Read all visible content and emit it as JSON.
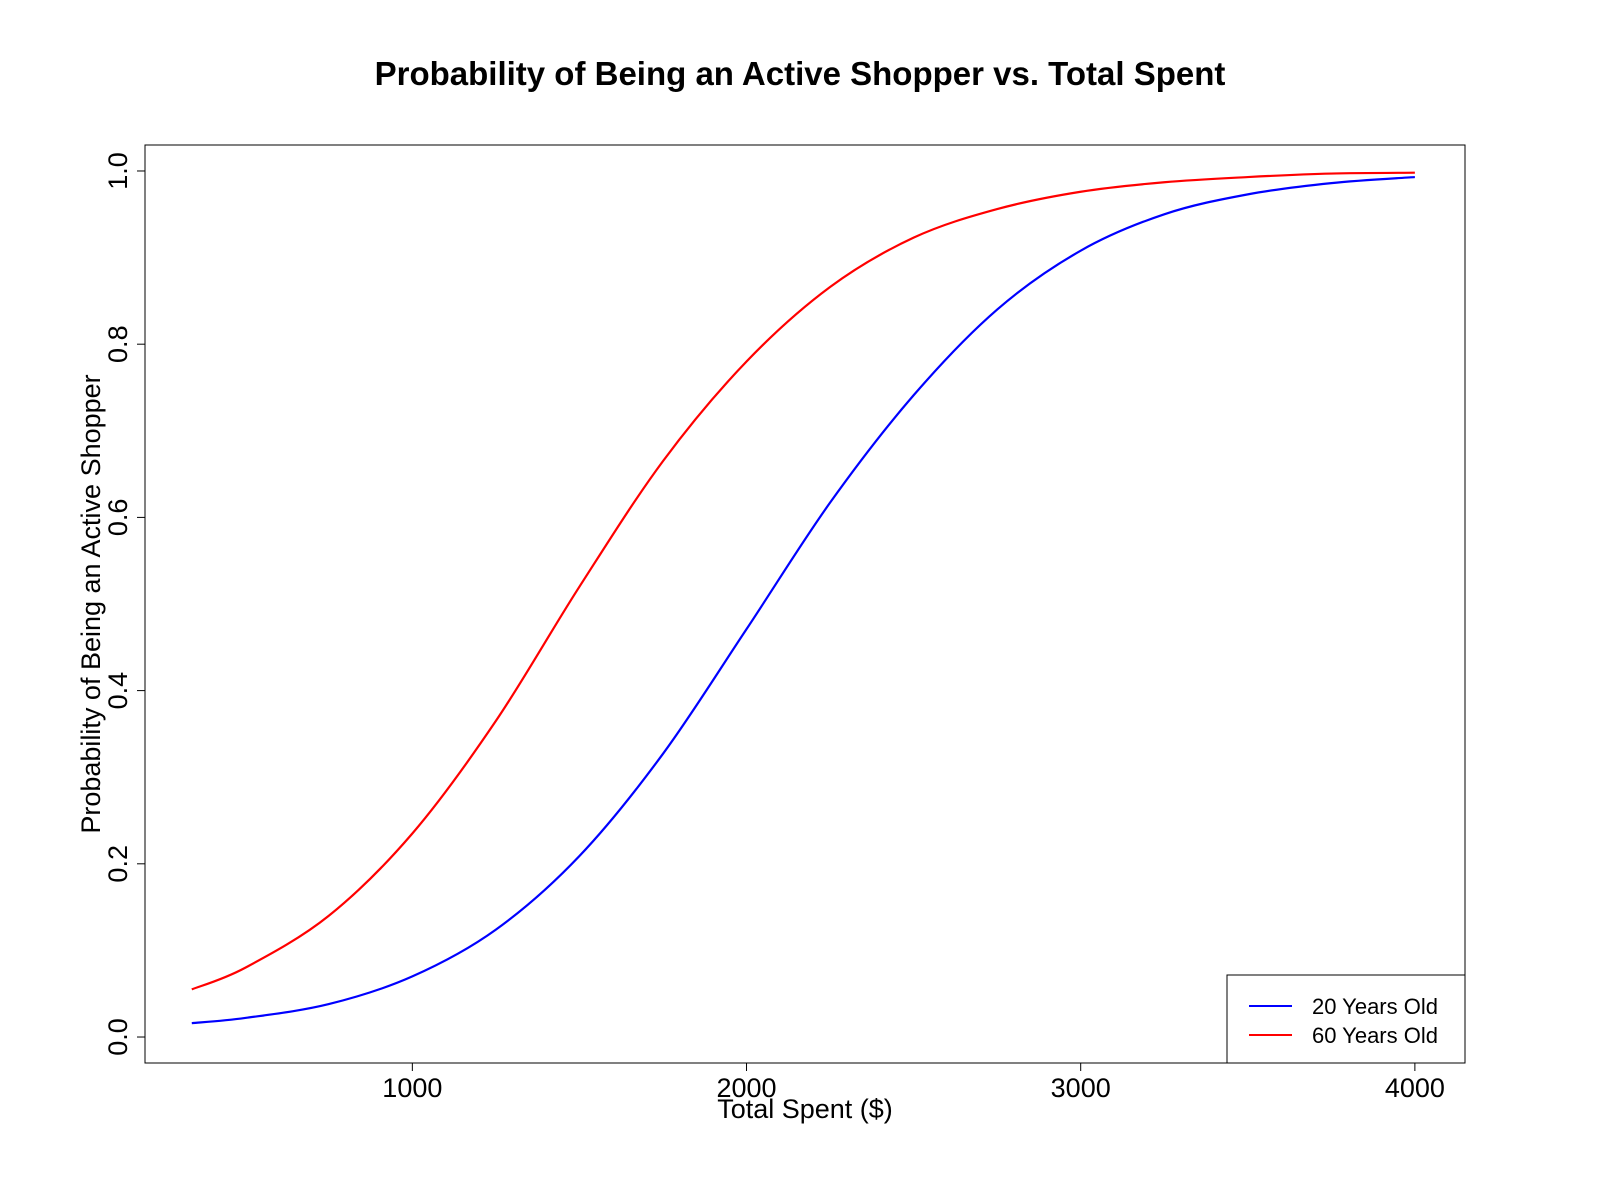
{
  "chart_data": {
    "type": "line",
    "title": "Probability of Being an Active Shopper vs. Total Spent",
    "xlabel": "Total Spent ($)",
    "ylabel": "Probability of Being an Active Shopper",
    "xlim": [
      200,
      4150
    ],
    "ylim": [
      -0.03,
      1.03
    ],
    "x_ticks": [
      1000,
      2000,
      3000,
      4000
    ],
    "x_tick_labels": [
      "1000",
      "2000",
      "3000",
      "4000"
    ],
    "y_ticks": [
      0.0,
      0.2,
      0.4,
      0.6,
      0.8,
      1.0
    ],
    "y_tick_labels": [
      "0.0",
      "0.2",
      "0.4",
      "0.6",
      "0.8",
      "1.0"
    ],
    "grid": false,
    "legend_position": "bottom-right",
    "x": [
      340,
      500,
      750,
      1000,
      1250,
      1500,
      1750,
      2000,
      2250,
      2500,
      2750,
      3000,
      3250,
      3500,
      3750,
      4000
    ],
    "series": [
      {
        "name": "20 Years Old",
        "color": "#0000ff",
        "values": [
          0.016,
          0.022,
          0.038,
          0.07,
          0.124,
          0.209,
          0.327,
          0.471,
          0.617,
          0.741,
          0.84,
          0.908,
          0.95,
          0.973,
          0.986,
          0.993
        ]
      },
      {
        "name": "60 Years Old",
        "color": "#ff0000",
        "values": [
          0.055,
          0.08,
          0.14,
          0.235,
          0.365,
          0.52,
          0.665,
          0.78,
          0.866,
          0.923,
          0.956,
          0.976,
          0.987,
          0.993,
          0.997,
          0.998
        ]
      }
    ]
  }
}
